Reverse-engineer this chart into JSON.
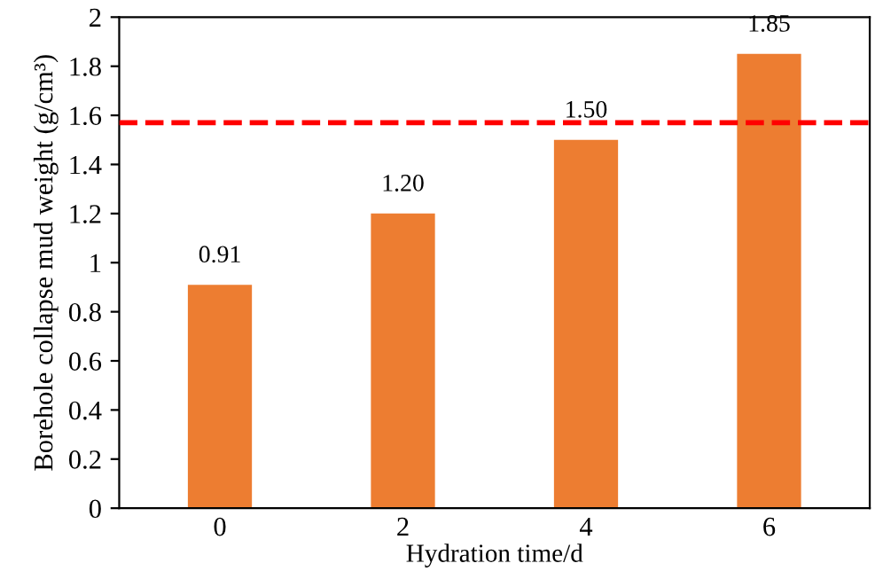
{
  "chart_data": {
    "type": "bar",
    "xlabel": "Hydration time/d",
    "ylabel": "Borehole collapse mud weight (g/cm³)",
    "categories": [
      "0",
      "2",
      "4",
      "6"
    ],
    "values": [
      0.91,
      1.2,
      1.5,
      1.85
    ],
    "value_labels": [
      "0.91",
      "1.20",
      "1.50",
      "1.85"
    ],
    "color": "#ed7d31",
    "ylim": [
      0,
      2
    ],
    "yticks": [
      0,
      0.2,
      0.4,
      0.6,
      0.8,
      1,
      1.2,
      1.4,
      1.6,
      1.8,
      2
    ],
    "ref_lines": [
      {
        "axis": "y",
        "value": 1.57,
        "label": null,
        "color": "#ff0000",
        "line_style": "dashed"
      }
    ],
    "grid": false
  }
}
